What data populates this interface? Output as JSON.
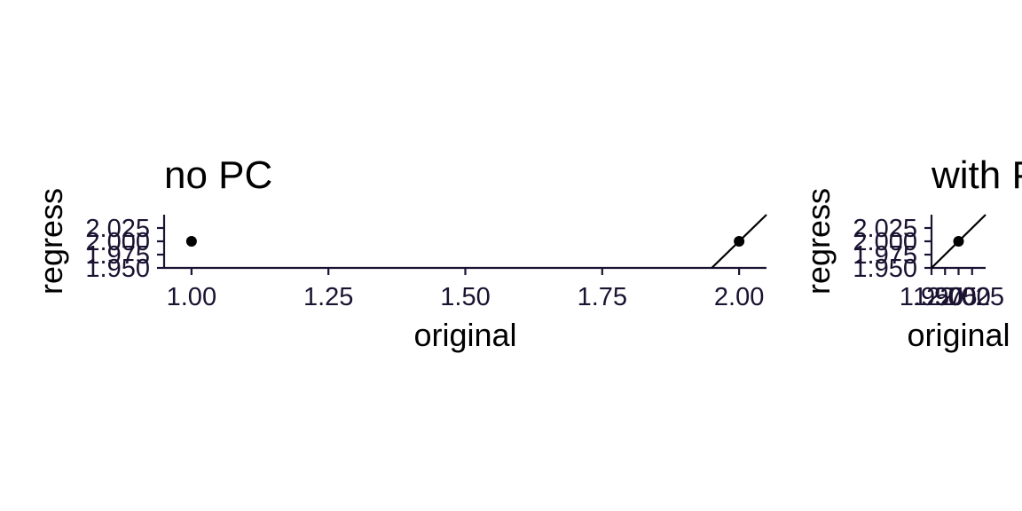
{
  "chart_data": [
    {
      "type": "scatter",
      "title": "no PC",
      "xlabel": "original",
      "ylabel": "regress",
      "xlim": [
        0.95,
        2.05
      ],
      "ylim": [
        1.95,
        2.05
      ],
      "x_ticks": [
        1.0,
        1.25,
        1.5,
        1.75,
        2.0
      ],
      "x_tick_labels": [
        "1.00",
        "1.25",
        "1.50",
        "1.75",
        "2.00"
      ],
      "y_ticks": [
        1.95,
        1.975,
        2.0,
        2.025
      ],
      "y_tick_labels": [
        "1.950",
        "1.975",
        "2.000",
        "2.025"
      ],
      "reference_line": "y = x",
      "points": [
        {
          "x": 1.0,
          "y": 2.0
        },
        {
          "x": 2.0,
          "y": 2.0
        }
      ],
      "colors": {
        "axis": "#1a1230",
        "points": "#000000",
        "line": "#000000"
      }
    },
    {
      "type": "scatter",
      "title": "with PC",
      "xlabel": "original",
      "ylabel": "regress",
      "xlim": [
        1.95,
        2.05
      ],
      "ylim": [
        1.95,
        2.05
      ],
      "x_ticks": [
        1.95,
        1.975,
        2.0,
        2.025
      ],
      "x_tick_labels": [
        "1.950",
        "1.975",
        "2.000",
        "2.025"
      ],
      "y_ticks": [
        1.95,
        1.975,
        2.0,
        2.025
      ],
      "y_tick_labels": [
        "1.950",
        "1.975",
        "2.000",
        "2.025"
      ],
      "reference_line": "y = x",
      "points": [
        {
          "x": 2.0,
          "y": 2.0
        }
      ],
      "colors": {
        "axis": "#1a1230",
        "points": "#000000",
        "line": "#000000"
      }
    }
  ]
}
